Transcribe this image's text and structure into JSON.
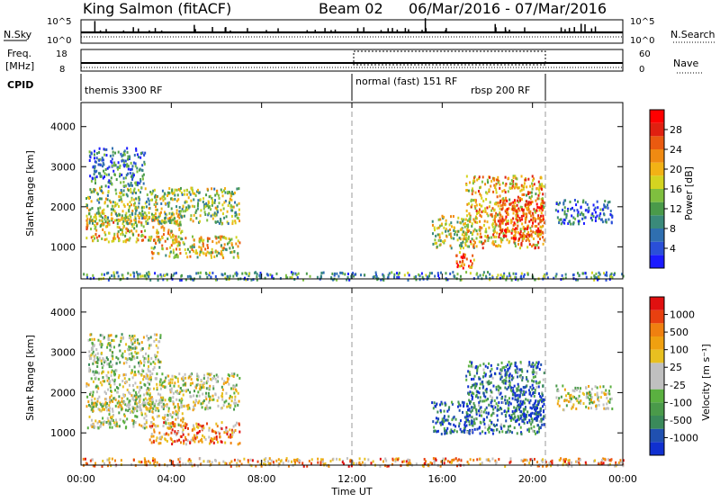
{
  "header": {
    "station": "King Salmon (fitACF)",
    "beam": "Beam 02",
    "date_range": "06/Mar/2016 - 07/Mar/2016"
  },
  "status_panels": {
    "nsky_label": "N.Sky",
    "nsky_ticks": [
      "10^5",
      "10^0"
    ],
    "nsearch_label": "N.Search",
    "nsearch_ticks": [
      "10^5",
      "10^0"
    ],
    "freq_label_line1": "Freq.",
    "freq_label_line2": "[MHz]",
    "freq_ticks": [
      "18",
      "8"
    ],
    "nave_label": "Nave",
    "nave_ticks": [
      "60",
      "0"
    ],
    "cpid_label": "CPID",
    "cpid_segments": [
      "themis 3300 RF",
      "normal (fast) 151 RF",
      "rbsp 200 RF"
    ]
  },
  "chart_data": [
    {
      "type": "heatmap",
      "name": "power",
      "ylabel": "Slant Range [km]",
      "yticks": [
        1000,
        2000,
        3000,
        4000
      ],
      "ylim": [
        200,
        4600
      ],
      "xlim": [
        0,
        24
      ],
      "colorbar": {
        "label": "Power [dB]",
        "ticks": [
          "4",
          "8",
          "12",
          "16",
          "20",
          "24",
          "28"
        ],
        "colors": [
          "#1a1aff",
          "#2a4fd8",
          "#2f6fb0",
          "#3a8a7a",
          "#4a9a4a",
          "#7fbf3f",
          "#d4d420",
          "#f2b215",
          "#f08a12",
          "#ea5a10",
          "#e02010",
          "#ff0000"
        ]
      },
      "scatter_regions": [
        {
          "t0": 0.2,
          "t1": 4.5,
          "r0": 1150,
          "r1": 1900,
          "level": 0.6
        },
        {
          "t0": 0.2,
          "t1": 7.0,
          "r0": 1600,
          "r1": 2500,
          "level": 0.45
        },
        {
          "t0": 0.3,
          "t1": 2.8,
          "r0": 2500,
          "r1": 3500,
          "level": 0.25
        },
        {
          "t0": 3.0,
          "t1": 7.0,
          "r0": 750,
          "r1": 1300,
          "level": 0.55
        },
        {
          "t0": 15.5,
          "t1": 17.5,
          "r0": 1000,
          "r1": 1800,
          "level": 0.5
        },
        {
          "t0": 16.5,
          "t1": 17.5,
          "r0": 500,
          "r1": 900,
          "level": 0.8
        },
        {
          "t0": 17.0,
          "t1": 20.5,
          "r0": 1000,
          "r1": 2800,
          "level": 0.65
        },
        {
          "t0": 18.5,
          "t1": 20.5,
          "r0": 1200,
          "r1": 2200,
          "level": 0.85
        },
        {
          "t0": 21.0,
          "t1": 23.5,
          "r0": 1600,
          "r1": 2200,
          "level": 0.2
        },
        {
          "t0": 0.0,
          "t1": 24.0,
          "r0": 200,
          "r1": 400,
          "level": 0.3
        }
      ]
    },
    {
      "type": "heatmap",
      "name": "velocity",
      "ylabel": "Slant Range [km]",
      "yticks": [
        1000,
        2000,
        3000,
        4000
      ],
      "ylim": [
        200,
        4600
      ],
      "xlim": [
        0,
        24
      ],
      "xlabel": "Time UT",
      "xticks": [
        "00:00",
        "04:00",
        "08:00",
        "12:00",
        "16:00",
        "20:00",
        "00:00"
      ],
      "colorbar": {
        "label": "Velocity [m s⁻¹]",
        "ticks": [
          "1000",
          "500",
          "100",
          "25",
          "-25",
          "-100",
          "-500",
          "-1000"
        ],
        "colors": [
          "#1030d0",
          "#2050b0",
          "#3a8a5a",
          "#4a9a4a",
          "#5ab040",
          "#c0c0c0",
          "#c0c0c0",
          "#e8c020",
          "#f0a010",
          "#f08010",
          "#e84010",
          "#e01010"
        ]
      },
      "scatter_regions": [
        {
          "t0": 0.2,
          "t1": 4.5,
          "r0": 1150,
          "r1": 1900,
          "level": 0.5
        },
        {
          "t0": 0.2,
          "t1": 7.0,
          "r0": 1600,
          "r1": 2500,
          "level": 0.5
        },
        {
          "t0": 0.3,
          "t1": 3.5,
          "r0": 2500,
          "r1": 3500,
          "level": 0.45
        },
        {
          "t0": 3.0,
          "t1": 7.0,
          "r0": 750,
          "r1": 1300,
          "level": 0.75
        },
        {
          "t0": 15.5,
          "t1": 17.5,
          "r0": 1000,
          "r1": 1800,
          "level": 0.15
        },
        {
          "t0": 17.0,
          "t1": 20.5,
          "r0": 1000,
          "r1": 2800,
          "level": 0.2
        },
        {
          "t0": 19.0,
          "t1": 20.5,
          "r0": 1300,
          "r1": 2200,
          "level": 0.05
        },
        {
          "t0": 21.0,
          "t1": 23.5,
          "r0": 1600,
          "r1": 2200,
          "level": 0.5
        },
        {
          "t0": 0.0,
          "t1": 24.0,
          "r0": 200,
          "r1": 400,
          "level": 0.7
        }
      ]
    }
  ]
}
